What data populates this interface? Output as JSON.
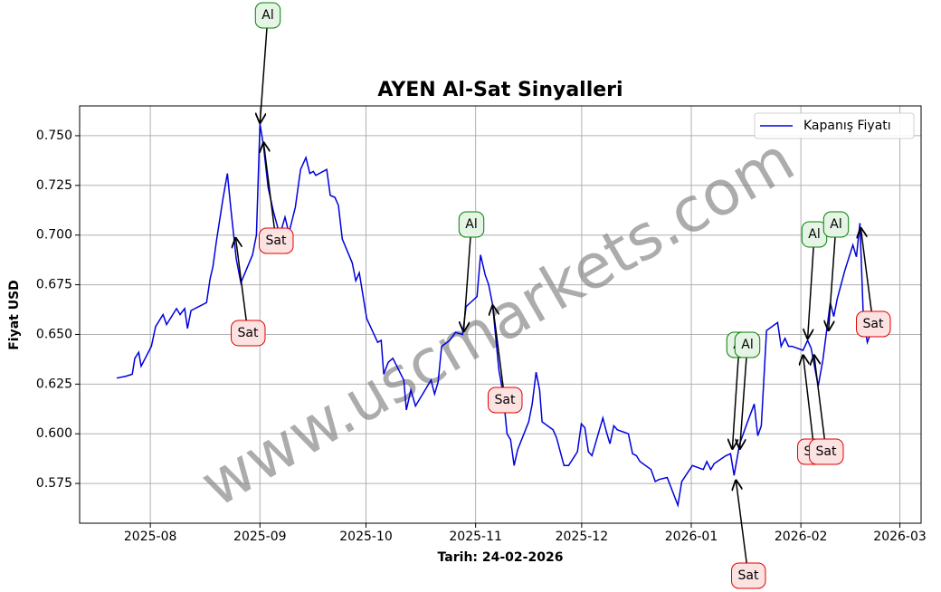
{
  "chart_data": {
    "type": "line",
    "title": "AYEN Al-Sat Sinyalleri",
    "x_label": "Tarih: 24-02-2026",
    "y_label": "Fiyat USD",
    "watermark": "www.uscmarkets.com",
    "grid": true,
    "legend": "upper right",
    "xlim": [
      -20,
      218
    ],
    "xticks": [
      {
        "value": 0,
        "label": "2025-08"
      },
      {
        "value": 31,
        "label": "2025-09"
      },
      {
        "value": 61,
        "label": "2025-10"
      },
      {
        "value": 92,
        "label": "2025-11"
      },
      {
        "value": 122,
        "label": "2025-12"
      },
      {
        "value": 153,
        "label": "2026-01"
      },
      {
        "value": 184,
        "label": "2026-02"
      },
      {
        "value": 212,
        "label": "2026-03"
      }
    ],
    "ylim": [
      0.555,
      0.765
    ],
    "yticks": [
      0.575,
      {
        "value": 0.6,
        "label": "0.600"
      },
      0.625,
      {
        "value": 0.65,
        "label": "0.650"
      },
      0.675,
      {
        "value": 0.7,
        "label": "0.700"
      },
      0.725,
      {
        "value": 0.75,
        "label": "0.750"
      }
    ],
    "x": [
      -9.5,
      -6.9,
      -5.1,
      -4.4,
      -3.3,
      -2.6,
      0.3,
      1.5,
      3.6,
      4.6,
      7.4,
      8.4,
      9.7,
      10.5,
      11.5,
      15.9,
      16.9,
      17.7,
      18.7,
      20.5,
      21.8,
      22.8,
      24.3,
      25.6,
      28.9,
      30.0,
      31.0,
      32.0,
      33.3,
      34.8,
      36.6,
      38.1,
      39.2,
      41.0,
      42.5,
      44.0,
      45.1,
      46.1,
      46.8,
      49.9,
      50.9,
      52.2,
      53.2,
      54.3,
      57.1,
      58.1,
      59.1,
      61.2,
      64.3,
      65.3,
      66.0,
      67.3,
      68.6,
      71.7,
      72.4,
      73.7,
      75.0,
      79.4,
      80.4,
      81.4,
      82.4,
      84.7,
      86.3,
      88.3,
      89.3,
      92.4,
      93.4,
      94.7,
      95.7,
      96.8,
      98.6,
      99.8,
      100.9,
      101.9,
      102.9,
      103.9,
      107.0,
      108.0,
      109.1,
      110.1,
      110.8,
      113.9,
      114.9,
      117.0,
      118.3,
      120.8,
      121.9,
      122.9,
      123.9,
      124.9,
      128.0,
      129.0,
      130.0,
      131.1,
      132.1,
      135.2,
      136.4,
      137.5,
      138.5,
      141.6,
      142.8,
      143.9,
      146.2,
      149.2,
      150.3,
      153.3,
      156.4,
      157.4,
      158.5,
      159.5,
      162.8,
      164.1,
      165.1,
      166.7,
      168.7,
      170.8,
      171.8,
      172.8,
      174.3,
      177.4,
      178.4,
      179.5,
      180.5,
      181.5,
      184.6,
      185.9,
      186.9,
      188.9,
      190.2,
      192.3,
      193.3,
      194.3,
      196.4,
      198.7,
      199.7,
      200.7,
      201.7,
      202.8,
      203.8
    ],
    "series": [
      {
        "name": "Kapanış Fiyatı",
        "color": "#0000dd",
        "values": [
          0.628,
          0.629,
          0.63,
          0.638,
          0.641,
          0.634,
          0.644,
          0.654,
          0.66,
          0.655,
          0.663,
          0.66,
          0.663,
          0.653,
          0.662,
          0.666,
          0.678,
          0.684,
          0.697,
          0.718,
          0.731,
          0.713,
          0.688,
          0.676,
          0.69,
          0.7,
          0.756,
          0.745,
          0.724,
          0.712,
          0.7,
          0.709,
          0.701,
          0.714,
          0.733,
          0.739,
          0.731,
          0.732,
          0.73,
          0.733,
          0.72,
          0.719,
          0.715,
          0.698,
          0.686,
          0.677,
          0.681,
          0.658,
          0.646,
          0.647,
          0.63,
          0.636,
          0.638,
          0.627,
          0.612,
          0.622,
          0.614,
          0.627,
          0.62,
          0.626,
          0.644,
          0.647,
          0.651,
          0.65,
          0.664,
          0.669,
          0.69,
          0.68,
          0.675,
          0.665,
          0.632,
          0.62,
          0.6,
          0.597,
          0.584,
          0.592,
          0.606,
          0.615,
          0.631,
          0.622,
          0.606,
          0.602,
          0.598,
          0.584,
          0.584,
          0.591,
          0.605,
          0.603,
          0.591,
          0.589,
          0.608,
          0.601,
          0.595,
          0.604,
          0.602,
          0.6,
          0.59,
          0.589,
          0.586,
          0.582,
          0.576,
          0.577,
          0.578,
          0.564,
          0.576,
          0.584,
          0.582,
          0.586,
          0.582,
          0.585,
          0.589,
          0.59,
          0.579,
          0.595,
          0.605,
          0.615,
          0.599,
          0.604,
          0.652,
          0.656,
          0.644,
          0.648,
          0.644,
          0.644,
          0.642,
          0.647,
          0.643,
          0.624,
          0.637,
          0.666,
          0.659,
          0.668,
          0.682,
          0.695,
          0.689,
          0.706,
          0.657,
          0.646,
          0.651
        ]
      }
    ],
    "annotations": [
      {
        "text": "Al",
        "x": 31.0,
        "y": 0.756,
        "color": "#008000",
        "fill": "#e6f4e6"
      },
      {
        "text": "Sat",
        "x": 32.0,
        "y": 0.747,
        "color": "#e00000",
        "fill": "#fde2e2"
      },
      {
        "text": "Sat",
        "x": 24.1,
        "y": 0.699,
        "color": "#e00000",
        "fill": "#fde2e2"
      },
      {
        "text": "Al",
        "x": 88.6,
        "y": 0.651,
        "color": "#008000",
        "fill": "#e6f4e6"
      },
      {
        "text": "Sat",
        "x": 96.8,
        "y": 0.665,
        "color": "#e00000",
        "fill": "#fde2e2"
      },
      {
        "text": "Al",
        "x": 164.6,
        "y": 0.592,
        "color": "#008000",
        "fill": "#e6f4e6"
      },
      {
        "text": "Al",
        "x": 166.7,
        "y": 0.592,
        "color": "#008000",
        "fill": "#e6f4e6"
      },
      {
        "text": "Sat",
        "x": 165.6,
        "y": 0.577,
        "color": "#e00000",
        "fill": "#fde2e2"
      },
      {
        "text": "Al",
        "x": 185.9,
        "y": 0.6475,
        "color": "#008000",
        "fill": "#e6f4e6"
      },
      {
        "text": "Al",
        "x": 191.8,
        "y": 0.6516,
        "color": "#008000",
        "fill": "#e6f4e6"
      },
      {
        "text": "Sat",
        "x": 184.6,
        "y": 0.64,
        "color": "#e00000",
        "fill": "#fde2e2"
      },
      {
        "text": "Sat",
        "x": 187.7,
        "y": 0.64,
        "color": "#e00000",
        "fill": "#fde2e2"
      },
      {
        "text": "Sat",
        "x": 200.9,
        "y": 0.704,
        "color": "#e00000",
        "fill": "#fde2e2"
      }
    ]
  }
}
